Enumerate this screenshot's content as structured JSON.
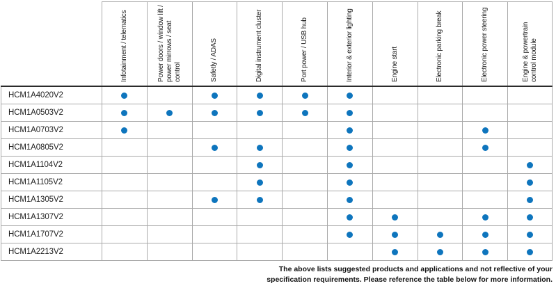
{
  "table": {
    "columns": [
      "Infotainment / telematics",
      "Power doors / window lift / power mirrows / seat control",
      "Safetly / ADAS",
      "Digital instrument cluster",
      "Port power / USB hub",
      "Interior & exterior lighting",
      "Engine start",
      "Electronic parking break",
      "Electronic power steering",
      "Engine & powertrain control module"
    ],
    "rows": [
      {
        "label": "HCM1A4020V2",
        "dots": [
          1,
          0,
          1,
          1,
          1,
          1,
          0,
          0,
          0,
          0
        ]
      },
      {
        "label": "HCM1A0503V2",
        "dots": [
          1,
          1,
          1,
          1,
          1,
          1,
          0,
          0,
          0,
          0
        ]
      },
      {
        "label": "HCM1A0703V2",
        "dots": [
          1,
          0,
          0,
          0,
          0,
          1,
          0,
          0,
          1,
          0
        ]
      },
      {
        "label": "HCM1A0805V2",
        "dots": [
          0,
          0,
          1,
          1,
          0,
          1,
          0,
          0,
          1,
          0
        ]
      },
      {
        "label": "HCM1A1104V2",
        "dots": [
          0,
          0,
          0,
          1,
          0,
          1,
          0,
          0,
          0,
          1
        ]
      },
      {
        "label": "HCM1A1105V2",
        "dots": [
          0,
          0,
          0,
          1,
          0,
          1,
          0,
          0,
          0,
          1
        ]
      },
      {
        "label": "HCM1A1305V2",
        "dots": [
          0,
          0,
          1,
          1,
          0,
          1,
          0,
          0,
          0,
          1
        ]
      },
      {
        "label": "HCM1A1307V2",
        "dots": [
          0,
          0,
          0,
          0,
          0,
          1,
          1,
          0,
          1,
          1
        ]
      },
      {
        "label": "HCM1A1707V2",
        "dots": [
          0,
          0,
          0,
          0,
          0,
          1,
          1,
          1,
          1,
          1
        ]
      },
      {
        "label": "HCM1A2213V2",
        "dots": [
          0,
          0,
          0,
          0,
          0,
          0,
          1,
          1,
          1,
          1
        ]
      }
    ]
  },
  "footer": {
    "line1": "The above lists suggested products and applications and not reflective of your",
    "line2": "specification requirements. Please reference the table below for more information."
  },
  "colors": {
    "dot": "#0e75bd",
    "grid": "#a9a9a9",
    "header_rule": "#2b2b2b"
  }
}
